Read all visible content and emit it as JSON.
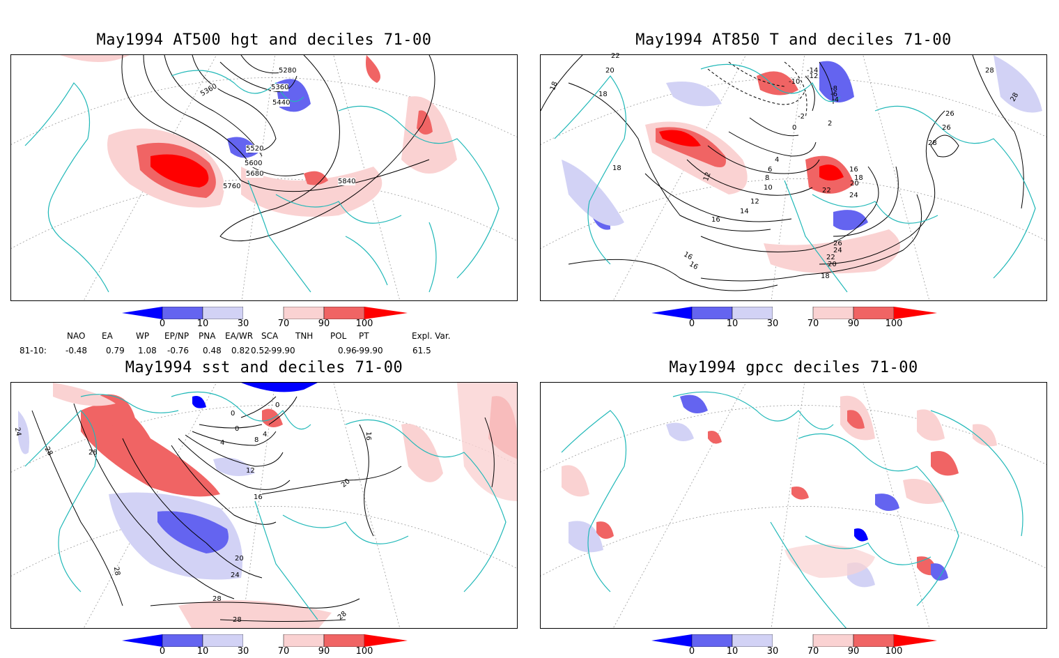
{
  "panels": [
    {
      "title": "May1994 AT500 hgt and deciles 71-00",
      "contour_labels": [
        "5280",
        "5360",
        "5360",
        "5440",
        "5520",
        "5600",
        "5680",
        "5760",
        "5840"
      ]
    },
    {
      "title": "May1994 AT850 T and deciles 71-00",
      "contour_labels": [
        "22",
        "20",
        "18",
        "18",
        "18",
        "-14",
        "-12",
        "-10",
        "-8",
        "-6",
        "-4",
        "-2",
        "0",
        "2",
        "4",
        "6",
        "8",
        "10",
        "12",
        "12",
        "14",
        "16",
        "16",
        "16",
        "16",
        "18",
        "20",
        "22",
        "24",
        "26",
        "26",
        "26",
        "28",
        "28",
        "24",
        "22",
        "20",
        "18",
        "28"
      ]
    },
    {
      "title": "May1994 sst and deciles 71-00",
      "contour_labels": [
        "24",
        "28",
        "28",
        "0",
        "0",
        "4",
        "4",
        "8",
        "12",
        "16",
        "16",
        "20",
        "20",
        "24",
        "28",
        "28",
        "28",
        "0",
        "28"
      ]
    },
    {
      "title": "May1994 gpcc deciles 71-00",
      "contour_labels": []
    }
  ],
  "colorbar": {
    "labels": [
      "0",
      "10",
      "30",
      "70",
      "90",
      "100"
    ],
    "colors": [
      "#0000ff",
      "#6464f0",
      "#d2d2f5",
      "#ffffff",
      "#fad2d2",
      "#f06464",
      "#ff0000"
    ]
  },
  "indices": {
    "headers": [
      "NAO",
      "EA",
      "WP",
      "EP/NP",
      "PNA",
      "EA/WR",
      "SCA",
      "TNH",
      "POL",
      "PT",
      "Expl. Var."
    ],
    "row_label": "81-10:",
    "values": [
      "-0.48",
      "0.79",
      "1.08",
      "-0.76",
      "0.48",
      "0.82",
      "0.52",
      "-99.90",
      "0.96",
      "-99.90",
      "61.5"
    ]
  }
}
